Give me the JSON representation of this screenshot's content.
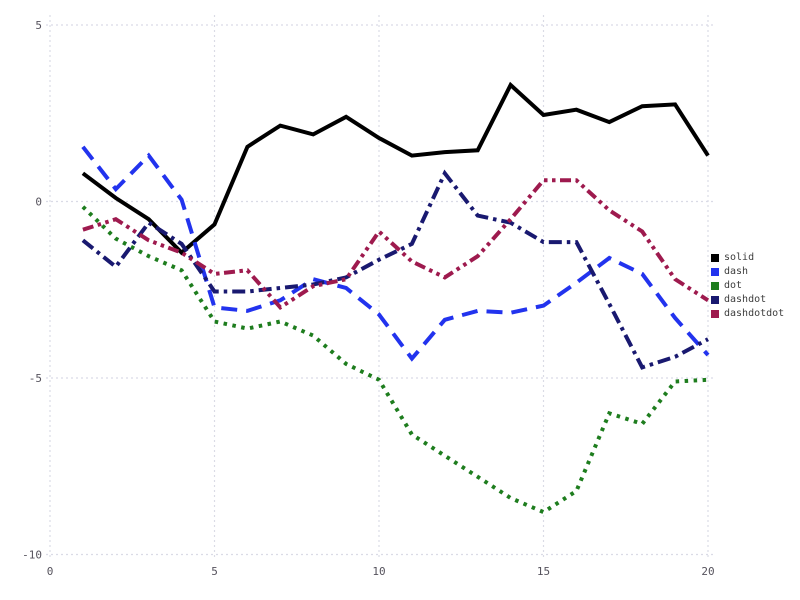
{
  "chart_data": {
    "type": "line",
    "title": "",
    "xlabel": "",
    "ylabel": "",
    "xlim": [
      0,
      20
    ],
    "ylim": [
      -10,
      5
    ],
    "grid": "dotted",
    "grid_color": "#dadbe6",
    "tick_label_color": "#55525c",
    "background_color": "#ffffff",
    "legend_position": "center-right",
    "xticks": [
      0,
      5,
      10,
      15,
      20
    ],
    "yticks": [
      5,
      0,
      -5,
      -10
    ],
    "x": [
      1,
      2,
      3,
      4,
      5,
      6,
      7,
      8,
      9,
      10,
      11,
      12,
      13,
      14,
      15,
      16,
      17,
      18,
      19,
      20
    ],
    "series": [
      {
        "name": "solid",
        "style": "solid",
        "color": "#000000",
        "values": [
          0.8,
          0.1,
          -0.5,
          -1.45,
          -0.65,
          1.55,
          2.15,
          1.9,
          2.4,
          1.8,
          1.3,
          1.4,
          1.45,
          3.3,
          2.45,
          2.6,
          2.25,
          2.7,
          2.75,
          1.3
        ]
      },
      {
        "name": "dash",
        "style": "dash",
        "color": "#2233ee",
        "values": [
          1.55,
          0.35,
          1.3,
          0.05,
          -3.0,
          -3.1,
          -2.8,
          -2.2,
          -2.45,
          -3.2,
          -4.45,
          -3.35,
          -3.1,
          -3.15,
          -2.95,
          -2.3,
          -1.6,
          -2.05,
          -3.3,
          -4.35
        ]
      },
      {
        "name": "dot",
        "style": "dot",
        "color": "#1e7d1e",
        "values": [
          -0.15,
          -1.05,
          -1.55,
          -1.95,
          -3.4,
          -3.6,
          -3.4,
          -3.8,
          -4.6,
          -5.05,
          -6.6,
          -7.2,
          -7.8,
          -8.4,
          -8.8,
          -8.2,
          -6.0,
          -6.3,
          -5.1,
          -5.05
        ]
      },
      {
        "name": "dashdot",
        "style": "dashdot",
        "color": "#191970",
        "values": [
          -1.1,
          -1.85,
          -0.6,
          -1.2,
          -2.55,
          -2.55,
          -2.45,
          -2.35,
          -2.15,
          -1.65,
          -1.2,
          0.8,
          -0.4,
          -0.6,
          -1.15,
          -1.15,
          -2.9,
          -4.7,
          -4.4,
          -3.9
        ]
      },
      {
        "name": "dashdotdot",
        "style": "dashdotdot",
        "color": "#9e1a4e",
        "values": [
          -0.8,
          -0.5,
          -1.1,
          -1.45,
          -2.05,
          -1.95,
          -3.0,
          -2.4,
          -2.2,
          -0.85,
          -1.7,
          -2.15,
          -1.55,
          -0.5,
          0.6,
          0.6,
          -0.25,
          -0.85,
          -2.2,
          -2.8
        ]
      }
    ]
  }
}
